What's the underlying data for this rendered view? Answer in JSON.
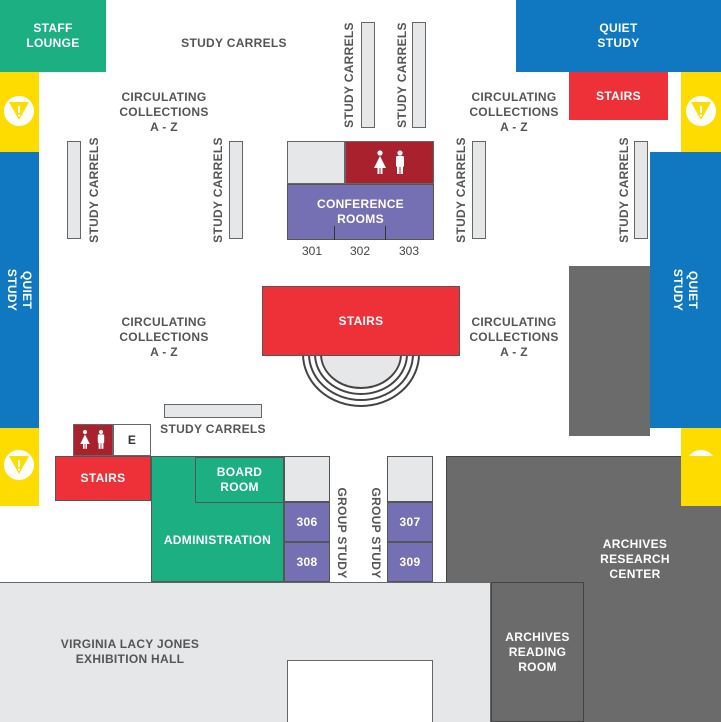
{
  "map": {
    "rooms": {
      "staff_lounge": "STAFF\nLOUNGE",
      "quiet_study_top_right": "QUIET\nSTUDY",
      "stairs_top_right": "STAIRS",
      "quiet_study_left": "QUIET\nSTUDY",
      "quiet_study_right": "QUIET\nSTUDY",
      "conference_rooms": "CONFERENCE\nROOMS",
      "stairs_center": "STAIRS",
      "stairs_bottom_left": "STAIRS",
      "elevator": "E",
      "board_room": "BOARD\nROOM",
      "administration": "ADMINISTRATION",
      "room_306": "306",
      "room_308": "308",
      "room_307": "307",
      "room_309": "309",
      "archives_research_center": "ARCHIVES\nRESEARCH\nCENTER",
      "archives_reading_room": "ARCHIVES\nREADING\nROOM",
      "exhibition_hall": "VIRGINIA LACY JONES\nEXHIBITION HALL"
    },
    "conference_numbers": [
      "301",
      "302",
      "303"
    ],
    "labels": {
      "study_carrels_top": "STUDY CARRELS",
      "study_carrels_bottom": "STUDY CARRELS",
      "study_carrels_vertical": "STUDY CARRELS",
      "circulating_top_left": "CIRCULATING\nCOLLECTIONS\nA - Z",
      "circulating_top_right": "CIRCULATING\nCOLLECTIONS\nA - Z",
      "circulating_mid_left": "CIRCULATING\nCOLLECTIONS\nA - Z",
      "circulating_mid_right": "CIRCULATING\nCOLLECTIONS\nA - Z",
      "group_study": "GROUP STUDY"
    },
    "colors": {
      "green": "#1BAF82",
      "blue": "#0F78C0",
      "red": "#EE3039",
      "dark_red": "#A8212C",
      "purple": "#756FB3",
      "yellow": "#FFDC00",
      "dark_gray": "#6B6B6B",
      "light_gray": "#E6E7E8"
    },
    "icons": [
      "restroom-icon",
      "warning-icon"
    ]
  }
}
